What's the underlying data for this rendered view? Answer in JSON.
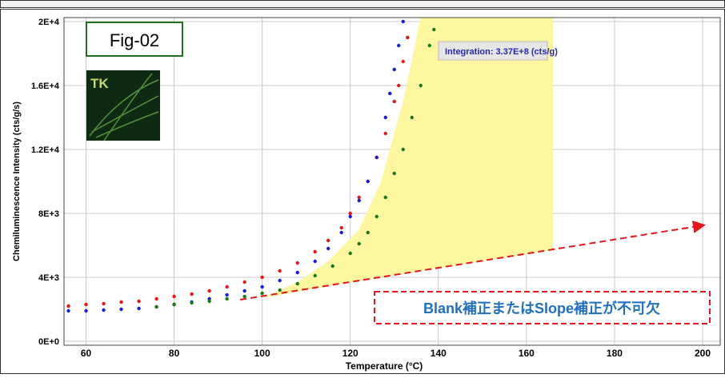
{
  "chart_data": {
    "type": "scatter",
    "x_label": "Temperature (°C)",
    "y_label": "Chemiluminescence Intensity (cts/g/s)",
    "xlim": [
      55,
      204
    ],
    "ylim": [
      -250,
      20250
    ],
    "xticks": [
      60,
      80,
      100,
      120,
      140,
      160,
      180,
      200
    ],
    "yticks": [
      {
        "value": 0,
        "label": "0E+0"
      },
      {
        "value": 4000,
        "label": "4E+3"
      },
      {
        "value": 8000,
        "label": "8E+3"
      },
      {
        "value": 12000,
        "label": "1.2E+4"
      },
      {
        "value": 16000,
        "label": "1.6E+4"
      },
      {
        "value": 20000,
        "label": "2E+4"
      }
    ],
    "grid": true,
    "series": [
      {
        "color": "#e8141c",
        "x": [
          56,
          60,
          64,
          68,
          72,
          76,
          80,
          84,
          88,
          92,
          96,
          100,
          104,
          108,
          112,
          115,
          118,
          120,
          122,
          124,
          126,
          128,
          130,
          131,
          132,
          133
        ],
        "y": [
          2200,
          2300,
          2350,
          2450,
          2500,
          2650,
          2800,
          2950,
          3150,
          3400,
          3700,
          4000,
          4400,
          4900,
          5600,
          6300,
          7100,
          8000,
          9000,
          10000,
          11500,
          13000,
          15000,
          16000,
          17500,
          19000
        ]
      },
      {
        "color": "#1a1adc",
        "x": [
          56,
          60,
          64,
          68,
          72,
          76,
          80,
          84,
          88,
          92,
          96,
          100,
          104,
          108,
          112,
          115,
          118,
          120,
          122,
          124,
          126,
          128,
          129,
          130,
          131,
          132
        ],
        "y": [
          1900,
          1900,
          1950,
          2000,
          2050,
          2150,
          2300,
          2450,
          2650,
          2900,
          3150,
          3400,
          3800,
          4300,
          5000,
          5800,
          6800,
          7800,
          8800,
          10000,
          11500,
          14000,
          15500,
          17000,
          18500,
          20000
        ]
      },
      {
        "color": "#157a15",
        "x": [
          76,
          80,
          84,
          88,
          92,
          96,
          100,
          104,
          108,
          112,
          116,
          120,
          122,
          124,
          126,
          128,
          130,
          132,
          134,
          136,
          138,
          139
        ],
        "y": [
          2150,
          2300,
          2400,
          2500,
          2650,
          2800,
          3000,
          3200,
          3600,
          4100,
          4700,
          5500,
          6100,
          6800,
          7800,
          9000,
          10500,
          12000,
          14000,
          16000,
          18500,
          19500
        ]
      }
    ],
    "integration_area": {
      "color": "#fdf8a0",
      "x": [
        108,
        115,
        122,
        127,
        132,
        136,
        166,
        166,
        120,
        100
      ],
      "y": [
        3700,
        5000,
        7000,
        10000,
        15000,
        20250,
        20250,
        5700,
        3700,
        2700
      ]
    },
    "arrow": {
      "color": "#e8141c",
      "x": [
        95,
        200
      ],
      "y": [
        2600,
        7250
      ]
    },
    "annotations": {
      "figure": "Fig-02",
      "logo": "TK",
      "integration": "Integration:  3.37E+8 (cts/g)",
      "note": "Blank補正またはSlope補正が不可欠"
    }
  }
}
